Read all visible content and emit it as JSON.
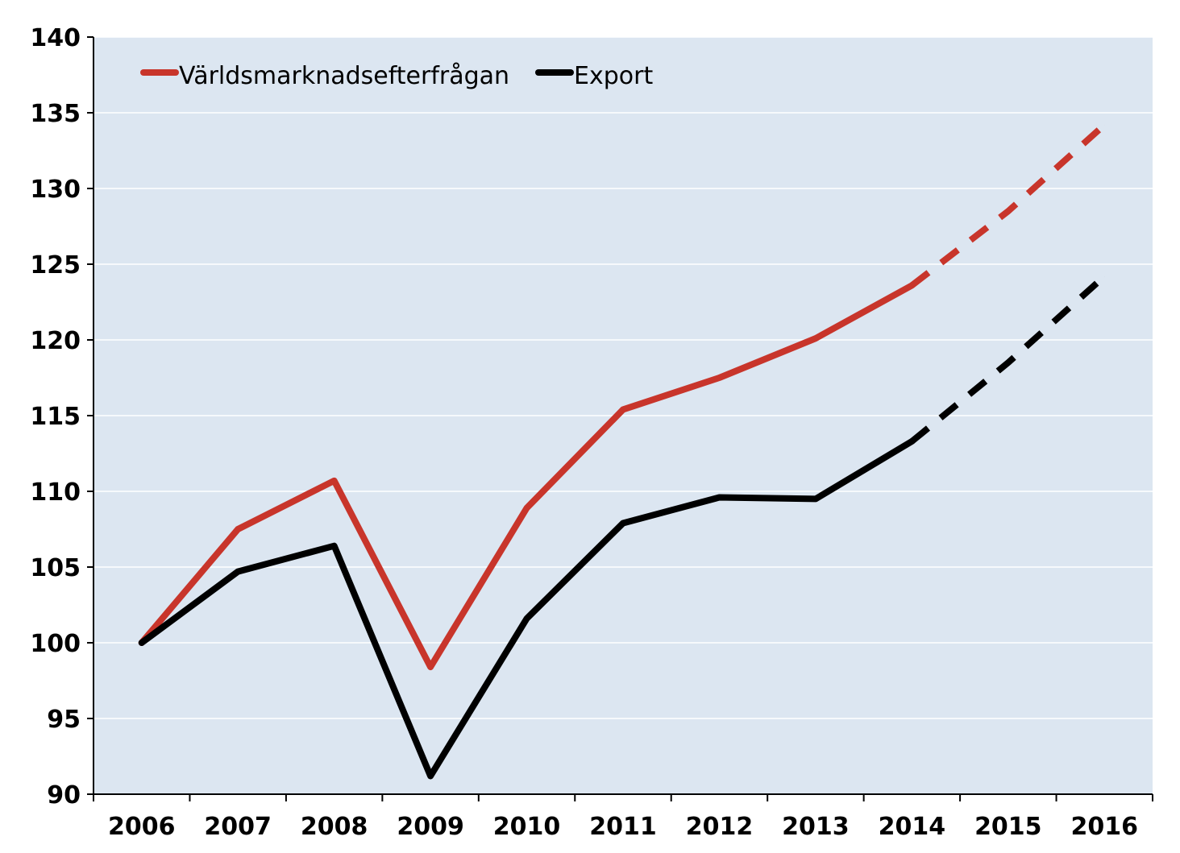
{
  "chart_data": {
    "type": "line",
    "title": "",
    "xlabel": "",
    "ylabel": "",
    "categories": [
      "2006",
      "2007",
      "2008",
      "2009",
      "2010",
      "2011",
      "2012",
      "2013",
      "2014",
      "2015",
      "2016"
    ],
    "ylim": [
      90,
      140
    ],
    "yticks": [
      90,
      95,
      100,
      105,
      110,
      115,
      120,
      125,
      130,
      135,
      140
    ],
    "grid": true,
    "background_color": "#dce6f1",
    "legend_position": "top-left",
    "forecast_from": "2014",
    "series": [
      {
        "name": "Världsmarknadsefterfrågan",
        "color": "#c8352b",
        "values": [
          100,
          107.5,
          110.7,
          98.4,
          108.9,
          115.4,
          117.5,
          120.1,
          123.6,
          128.5,
          134.2
        ]
      },
      {
        "name": "Export",
        "color": "#000000",
        "values": [
          100,
          104.7,
          106.4,
          91.2,
          101.6,
          107.9,
          109.6,
          109.5,
          113.3,
          118.5,
          124.2
        ]
      }
    ]
  }
}
